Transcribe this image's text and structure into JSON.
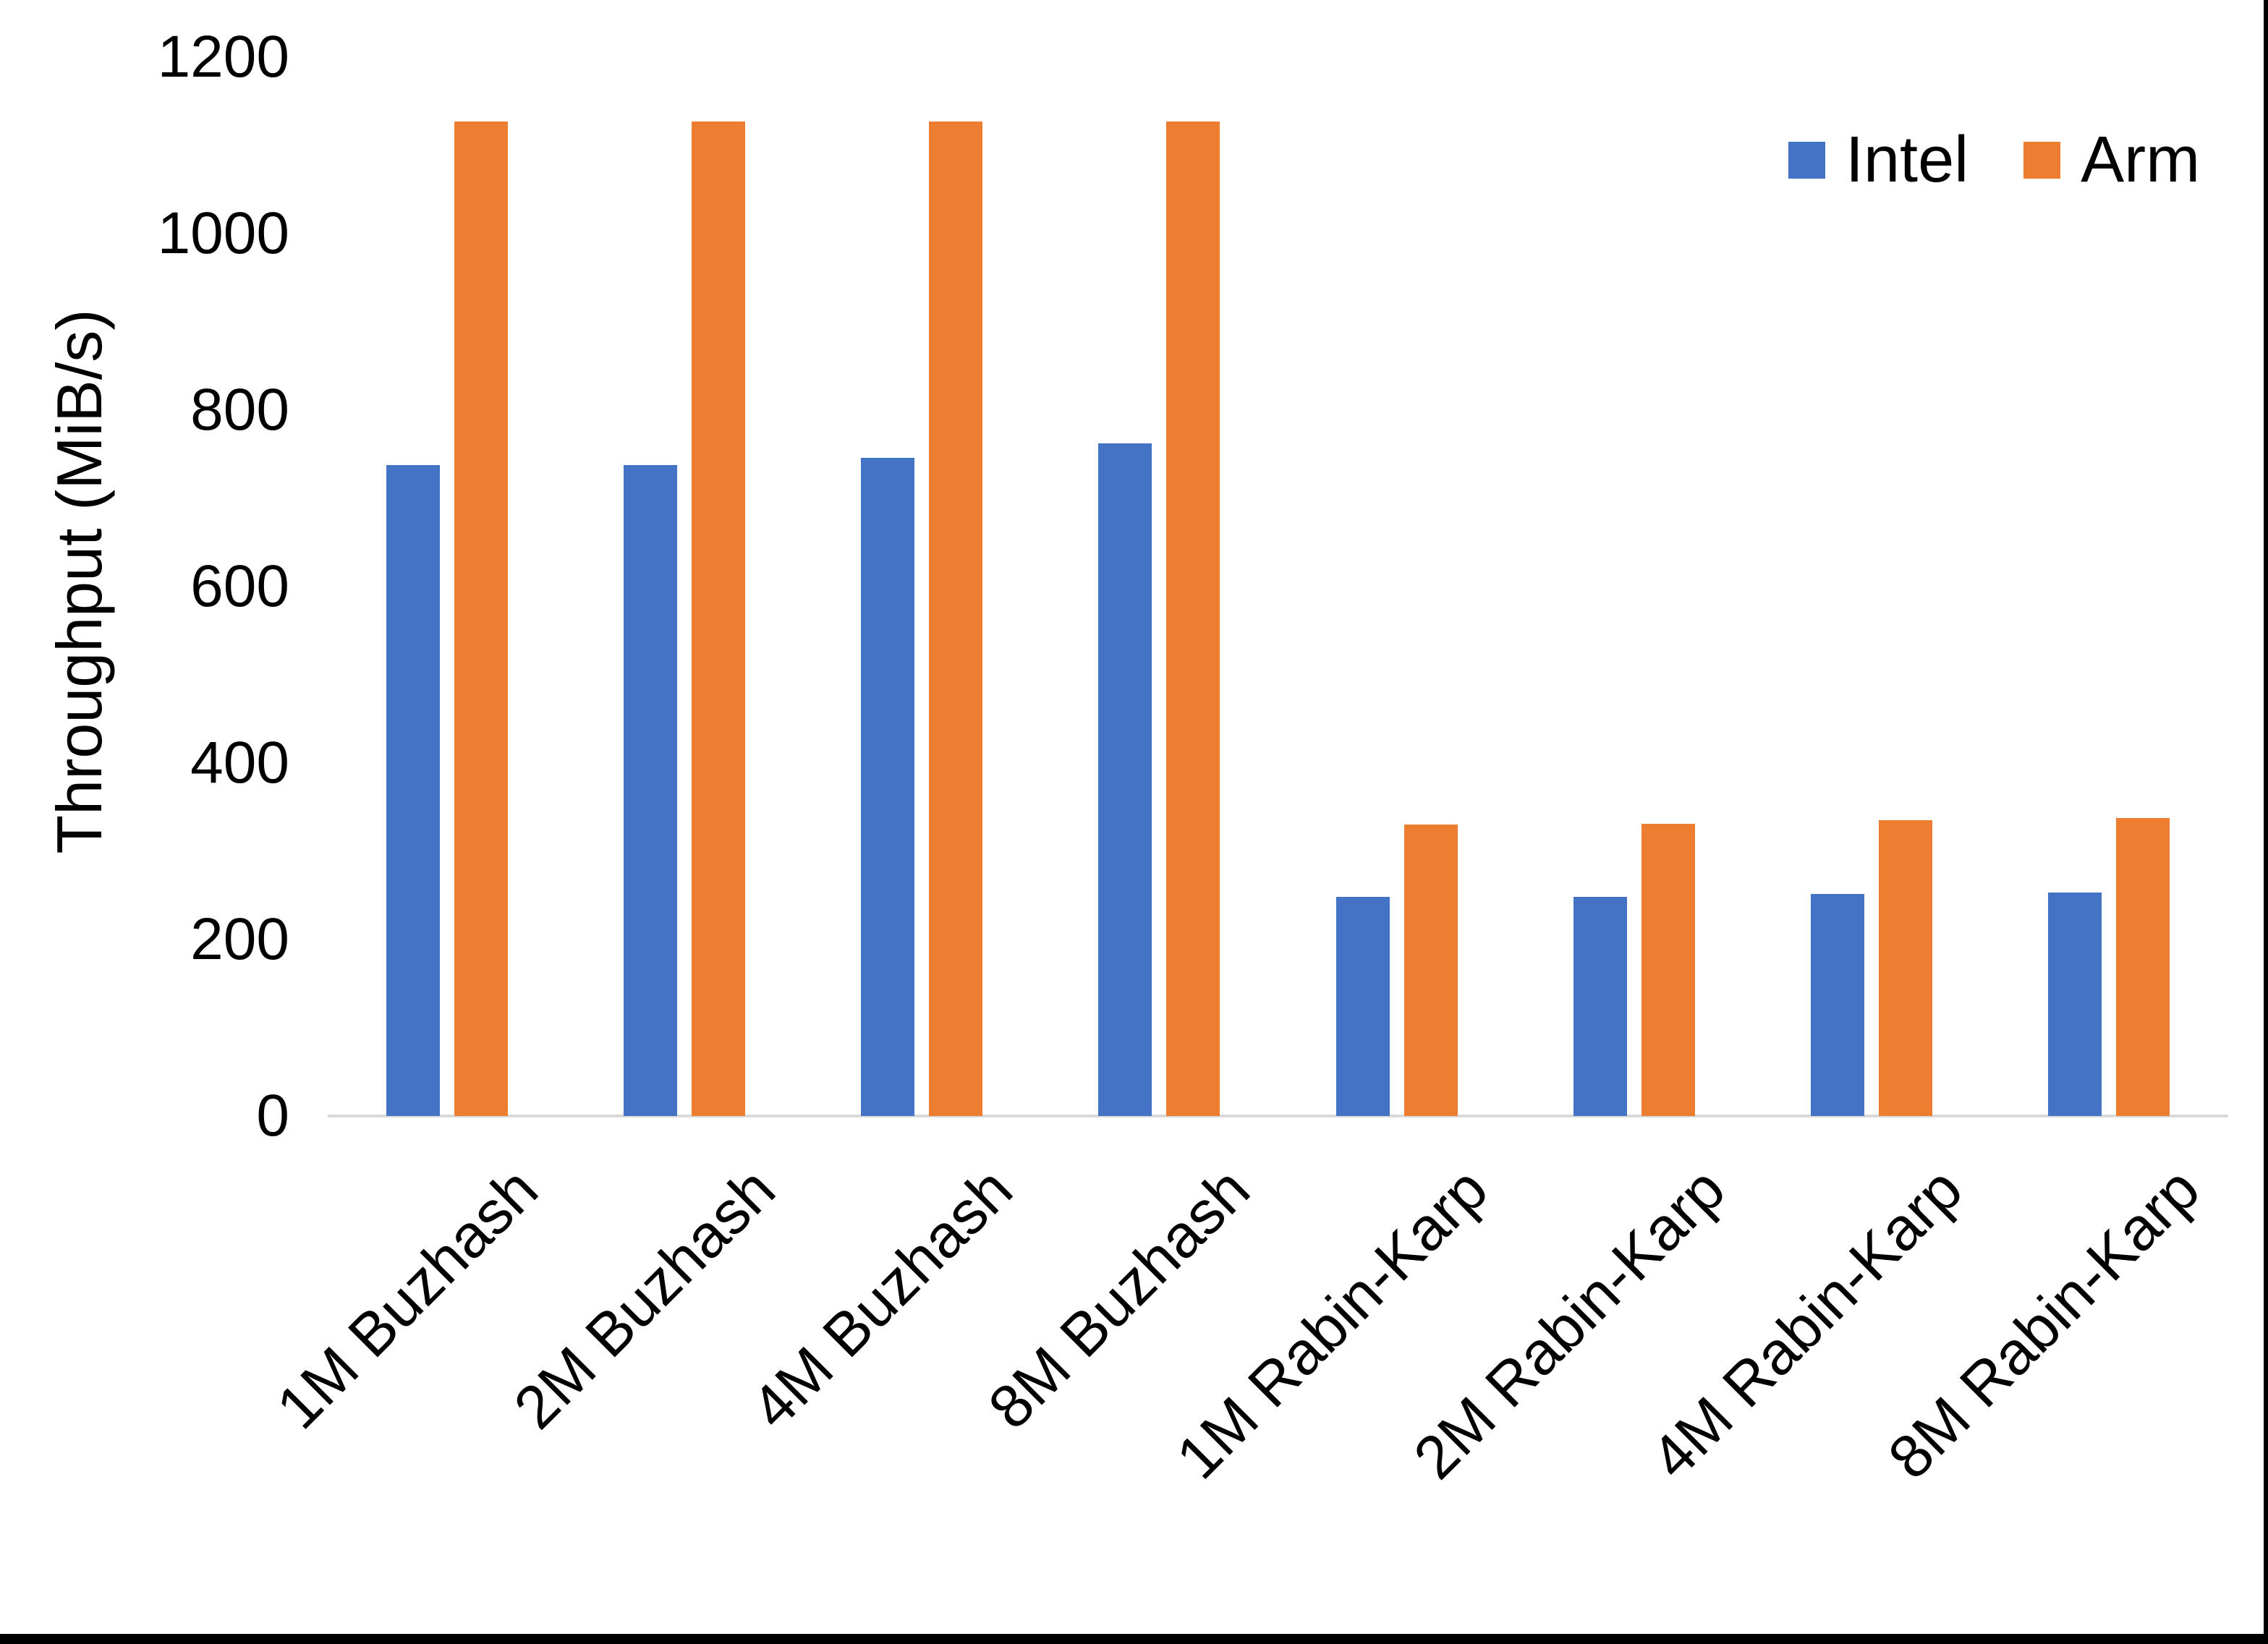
{
  "chart_data": {
    "type": "bar",
    "title": "",
    "ylabel": "Throughput (MiB/s)",
    "xlabel": "",
    "categories": [
      "1M Buzhash",
      "2M Buzhash",
      "4M Buzhash",
      "8M Buzhash",
      "1M Rabin-Karp",
      "2M Rabin-Karp",
      "4M Rabin-Karp",
      "8M Rabin-Karp"
    ],
    "series": [
      {
        "name": "Intel",
        "color": "#4472C4",
        "values": [
          738,
          738,
          746,
          762,
          248,
          248,
          252,
          253
        ]
      },
      {
        "name": "Arm",
        "color": "#ED7D31",
        "values": [
          1127,
          1127,
          1127,
          1127,
          330,
          331,
          335,
          338
        ]
      }
    ],
    "ylim": [
      0,
      1200
    ],
    "yticks": [
      0,
      200,
      400,
      600,
      800,
      1000,
      1200
    ],
    "ytick_interval": 200,
    "grid": false,
    "legend_position": "top-right",
    "axis_line_color": "#D9D9D9",
    "text_color": "#000000",
    "background_color": "#FFFFFF",
    "frame_color": "#000000",
    "x_label_rotation_deg": 45
  }
}
